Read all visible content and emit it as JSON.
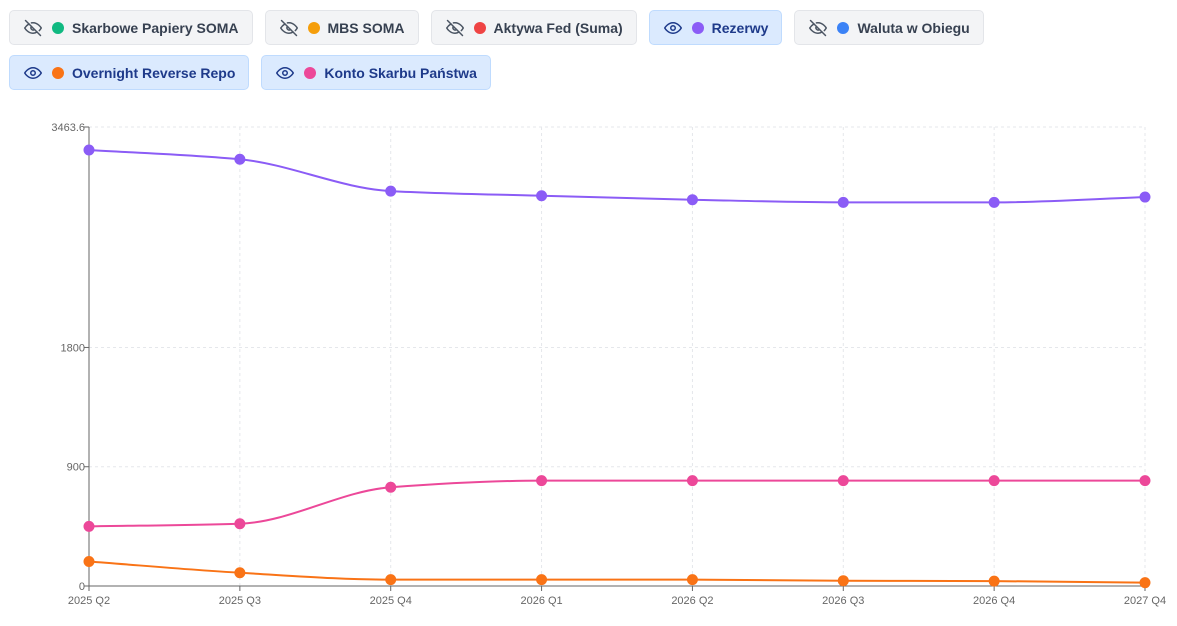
{
  "legend": [
    {
      "label": "Skarbowe Papiery SOMA",
      "color": "#10b981",
      "visible": false,
      "icon": "eye-off-icon"
    },
    {
      "label": "MBS SOMA",
      "color": "#f59e0b",
      "visible": false,
      "icon": "eye-off-icon"
    },
    {
      "label": "Aktywa Fed (Suma)",
      "color": "#ef4444",
      "visible": false,
      "icon": "eye-off-icon"
    },
    {
      "label": "Rezerwy",
      "color": "#8b5cf6",
      "visible": true,
      "icon": "eye-icon"
    },
    {
      "label": "Waluta w Obiegu",
      "color": "#3b82f6",
      "visible": false,
      "icon": "eye-off-icon"
    },
    {
      "label": "Overnight Reverse Repo",
      "color": "#f97316",
      "visible": true,
      "icon": "eye-icon"
    },
    {
      "label": "Konto Skarbu Państwa",
      "color": "#ec4899",
      "visible": true,
      "icon": "eye-icon"
    }
  ],
  "chart_data": {
    "type": "line",
    "categories": [
      "2025 Q2",
      "2025 Q3",
      "2025 Q4",
      "2026 Q1",
      "2026 Q2",
      "2026 Q3",
      "2026 Q4",
      "2027 Q4"
    ],
    "y_ticks": [
      "0",
      "900",
      "1800",
      "3463.6"
    ],
    "y_tick_values": [
      0,
      900,
      1800,
      3463.6
    ],
    "ylim": [
      0,
      3463.6
    ],
    "grid": true,
    "series": [
      {
        "name": "Rezerwy",
        "color": "#8b5cf6",
        "values": [
          3290,
          3220,
          2980,
          2945,
          2915,
          2895,
          2895,
          2935
        ]
      },
      {
        "name": "Konto Skarbu Państwa",
        "color": "#ec4899",
        "values": [
          450,
          470,
          745,
          795,
          795,
          795,
          795,
          795
        ]
      },
      {
        "name": "Overnight Reverse Repo",
        "color": "#f97316",
        "values": [
          185,
          100,
          48,
          48,
          48,
          40,
          37,
          25
        ]
      }
    ]
  }
}
